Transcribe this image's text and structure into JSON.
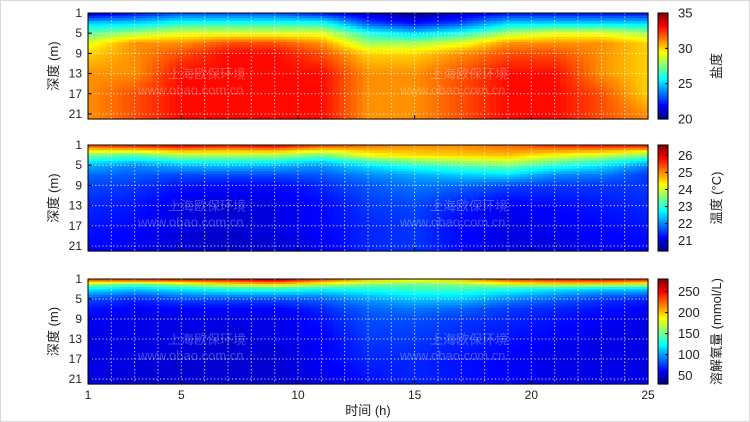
{
  "watermark": {
    "company": "上海欧保环境",
    "website": "www.obao.com.cn"
  },
  "chart_data": [
    {
      "type": "heatmap",
      "name": "salinity",
      "x": [
        1,
        3,
        5,
        7,
        9,
        11,
        13,
        15,
        17,
        19,
        21,
        23,
        25
      ],
      "y": [
        1,
        3,
        5,
        7,
        9,
        13,
        17,
        21
      ],
      "xlim": [
        1,
        25
      ],
      "ylim": [
        1,
        22
      ],
      "xticks": [
        1,
        5,
        10,
        15,
        20,
        25
      ],
      "yticks": [
        1,
        5,
        9,
        13,
        17,
        21
      ],
      "ylabel": "深度 (m)",
      "xlabel": "",
      "colorbar": {
        "label": "盐度",
        "range": [
          20,
          35
        ],
        "ticks": [
          20,
          25,
          30,
          35
        ]
      },
      "grid": true,
      "z": [
        [
          21,
          22,
          23,
          23,
          23,
          22,
          21,
          20,
          21,
          22,
          22,
          22,
          22
        ],
        [
          25,
          25,
          26,
          26,
          26,
          26,
          23,
          22,
          23,
          25,
          25,
          25,
          25
        ],
        [
          27,
          28,
          29,
          29,
          29,
          29,
          26,
          25,
          26,
          28,
          29,
          29,
          28
        ],
        [
          29,
          31,
          31,
          32,
          32,
          31,
          28,
          28,
          29,
          31,
          31,
          31,
          30
        ],
        [
          30,
          31,
          32,
          33,
          33,
          32,
          30,
          30,
          31,
          32,
          32,
          31,
          30
        ],
        [
          31,
          31,
          33,
          33,
          33,
          33,
          31,
          31,
          32,
          33,
          33,
          31,
          30
        ],
        [
          31,
          32,
          33,
          33,
          33,
          33,
          31,
          31,
          32,
          33,
          33,
          32,
          30
        ],
        [
          31,
          32,
          33,
          33,
          33,
          33,
          31,
          31,
          32,
          33,
          33,
          32,
          31
        ]
      ]
    },
    {
      "type": "heatmap",
      "name": "temperature",
      "x": [
        1,
        3,
        5,
        7,
        9,
        11,
        13,
        15,
        17,
        19,
        21,
        23,
        25
      ],
      "y": [
        1,
        3,
        5,
        7,
        9,
        13,
        17,
        21
      ],
      "xlim": [
        1,
        25
      ],
      "ylim": [
        1,
        22
      ],
      "xticks": [
        1,
        5,
        10,
        15,
        20,
        25
      ],
      "yticks": [
        1,
        5,
        9,
        13,
        17,
        21
      ],
      "ylabel": "深度 (m)",
      "xlabel": "",
      "colorbar": {
        "label": "温度 (°C)",
        "range": [
          20.4,
          26.6
        ],
        "ticks": [
          21,
          22,
          23,
          24,
          25,
          26
        ]
      },
      "grid": true,
      "z": [
        [
          25.5,
          25.8,
          26.0,
          25.8,
          26.0,
          25.5,
          25.2,
          25.0,
          25.0,
          25.2,
          25.6,
          25.8,
          25.8
        ],
        [
          23.5,
          23.3,
          23.8,
          23.8,
          23.8,
          23.4,
          24.2,
          24.5,
          24.6,
          24.7,
          24.3,
          24.0,
          23.5
        ],
        [
          22.3,
          22.0,
          22.3,
          22.4,
          22.3,
          22.1,
          22.6,
          23.0,
          23.3,
          23.5,
          23.0,
          22.6,
          22.0
        ],
        [
          21.8,
          21.7,
          21.6,
          21.6,
          21.6,
          21.7,
          22.0,
          22.2,
          22.4,
          22.5,
          22.0,
          21.9,
          21.5
        ],
        [
          21.6,
          21.5,
          21.3,
          21.2,
          21.2,
          21.4,
          21.7,
          21.9,
          21.8,
          21.6,
          21.5,
          21.5,
          21.5
        ],
        [
          21.4,
          21.3,
          21.0,
          20.9,
          21.0,
          21.2,
          21.5,
          21.6,
          21.3,
          21.1,
          21.2,
          21.3,
          21.4
        ],
        [
          21.3,
          21.2,
          21.0,
          20.9,
          21.0,
          21.2,
          21.4,
          21.5,
          21.2,
          21.0,
          21.1,
          21.2,
          21.3
        ],
        [
          21.2,
          21.1,
          20.9,
          20.8,
          20.9,
          21.1,
          21.4,
          21.5,
          21.2,
          21.0,
          21.0,
          21.1,
          21.2
        ]
      ]
    },
    {
      "type": "heatmap",
      "name": "dissolved-oxygen",
      "x": [
        1,
        3,
        5,
        7,
        9,
        11,
        13,
        15,
        17,
        19,
        21,
        23,
        25
      ],
      "y": [
        1,
        2,
        3,
        5,
        7,
        9,
        13,
        17,
        21
      ],
      "xlim": [
        1,
        25
      ],
      "ylim": [
        1,
        22
      ],
      "xticks": [
        1,
        5,
        10,
        15,
        20,
        25
      ],
      "yticks": [
        1,
        5,
        9,
        13,
        17,
        21
      ],
      "ylabel": "深度 (m)",
      "xlabel": "时间 (h)",
      "colorbar": {
        "label": "溶解氧量 (mmol/L)",
        "range": [
          30,
          280
        ],
        "ticks": [
          50,
          100,
          150,
          200,
          250
        ]
      },
      "grid": true,
      "z": [
        [
          240,
          250,
          255,
          255,
          270,
          240,
          210,
          200,
          210,
          240,
          250,
          255,
          250
        ],
        [
          170,
          150,
          170,
          190,
          200,
          180,
          160,
          150,
          160,
          180,
          190,
          190,
          180
        ],
        [
          120,
          110,
          120,
          130,
          135,
          125,
          130,
          140,
          140,
          130,
          120,
          110,
          110
        ],
        [
          80,
          70,
          80,
          80,
          80,
          85,
          100,
          110,
          110,
          95,
          85,
          75,
          70
        ],
        [
          65,
          60,
          60,
          60,
          60,
          70,
          85,
          90,
          85,
          75,
          70,
          65,
          60
        ],
        [
          60,
          55,
          55,
          55,
          55,
          65,
          80,
          80,
          75,
          70,
          65,
          60,
          55
        ],
        [
          55,
          55,
          55,
          50,
          55,
          60,
          75,
          75,
          70,
          65,
          60,
          55,
          55
        ],
        [
          55,
          55,
          50,
          50,
          50,
          60,
          70,
          70,
          65,
          60,
          55,
          55,
          55
        ],
        [
          55,
          50,
          50,
          50,
          50,
          55,
          65,
          70,
          65,
          60,
          55,
          55,
          55
        ]
      ]
    }
  ]
}
